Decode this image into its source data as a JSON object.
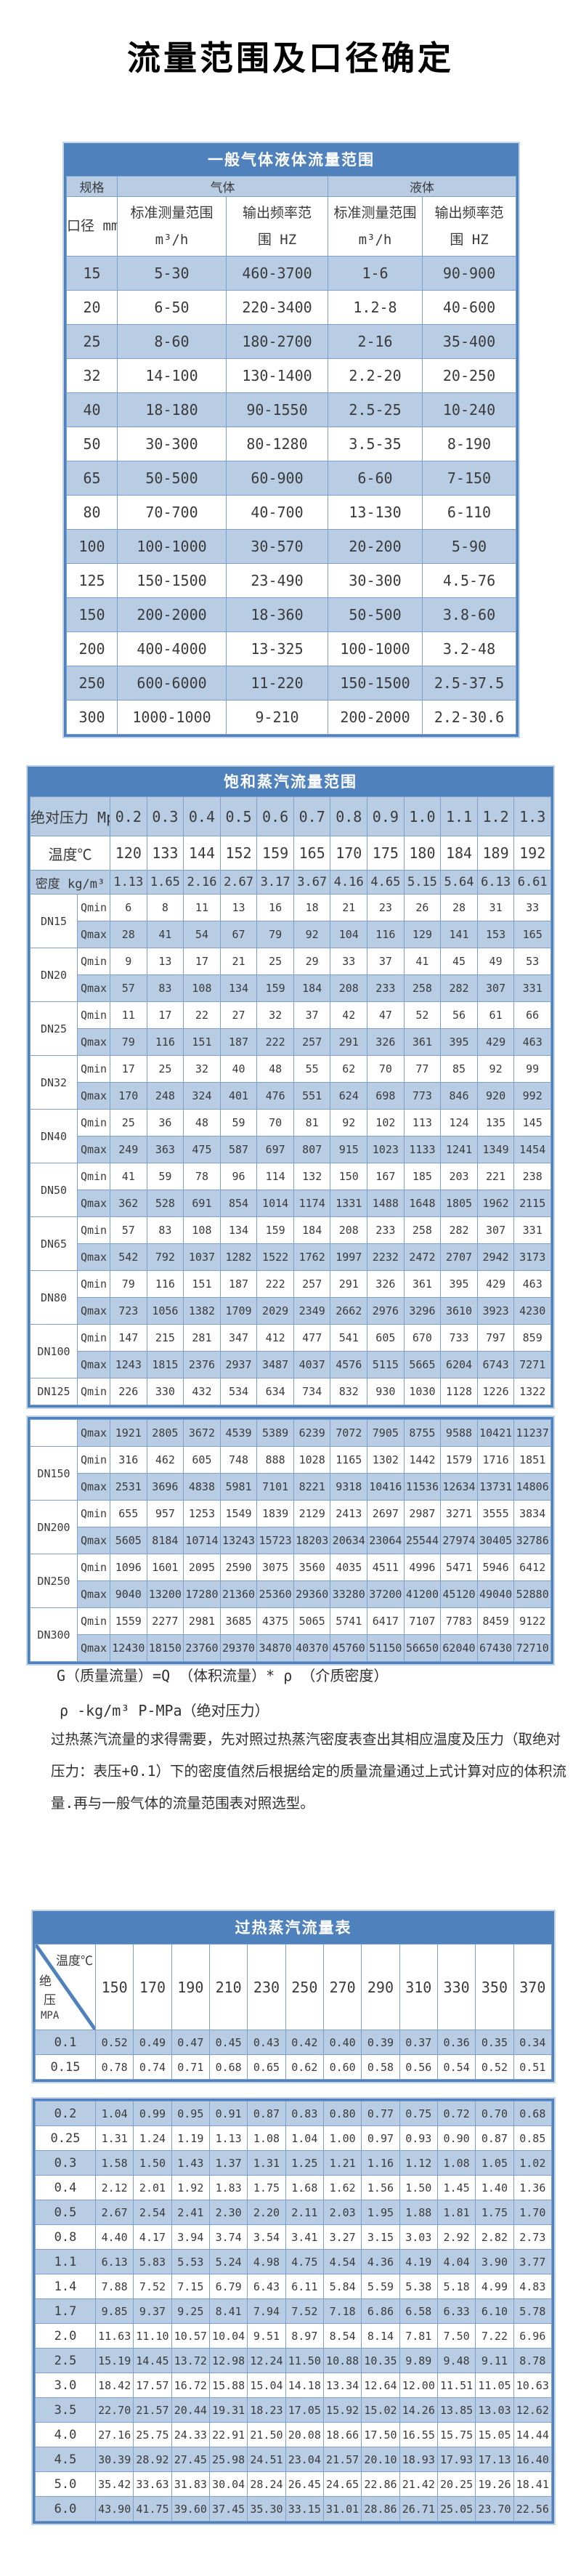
{
  "page_title": "流量范围及口径确定",
  "table1": {
    "title": "一般气体液体流量范围",
    "col_groups": [
      "规格",
      "气体",
      "液体"
    ],
    "headers": [
      {
        "line1": "口径 mm",
        "line2": ""
      },
      {
        "line1": "标准测量范围",
        "line2": "m³/h"
      },
      {
        "line1": "输出频率范",
        "line2": "围 HZ"
      },
      {
        "line1": "标准测量范围",
        "line2": "m³/h"
      },
      {
        "line1": "输出频率范",
        "line2": "围 HZ"
      }
    ],
    "rows": [
      [
        "15",
        "5-30",
        "460-3700",
        "1-6",
        "90-900"
      ],
      [
        "20",
        "6-50",
        "220-3400",
        "1.2-8",
        "40-600"
      ],
      [
        "25",
        "8-60",
        "180-2700",
        "2-16",
        "35-400"
      ],
      [
        "32",
        "14-100",
        "130-1400",
        "2.2-20",
        "20-250"
      ],
      [
        "40",
        "18-180",
        "90-1550",
        "2.5-25",
        "10-240"
      ],
      [
        "50",
        "30-300",
        "80-1280",
        "3.5-35",
        "8-190"
      ],
      [
        "65",
        "50-500",
        "60-900",
        "6-60",
        "7-150"
      ],
      [
        "80",
        "70-700",
        "40-700",
        "13-130",
        "6-110"
      ],
      [
        "100",
        "100-1000",
        "30-570",
        "20-200",
        "5-90"
      ],
      [
        "125",
        "150-1500",
        "23-490",
        "30-300",
        "4.5-76"
      ],
      [
        "150",
        "200-2000",
        "18-360",
        "50-500",
        "3.8-60"
      ],
      [
        "200",
        "400-4000",
        "13-325",
        "100-1000",
        "3.2-48"
      ],
      [
        "250",
        "600-6000",
        "11-220",
        "150-1500",
        "2.5-37.5"
      ],
      [
        "300",
        "1000-1000",
        "9-210",
        "200-2000",
        "2.2-30.6"
      ]
    ]
  },
  "table2": {
    "title": "饱和蒸汽流量范围",
    "pressure_label": "绝对压力 Mpa",
    "pressures": [
      "0.2",
      "0.3",
      "0.4",
      "0.5",
      "0.6",
      "0.7",
      "0.8",
      "0.9",
      "1.0",
      "1.1",
      "1.2",
      "1.3"
    ],
    "temperature_label": "温度℃",
    "temperatures": [
      120,
      133,
      144,
      152,
      159,
      165,
      170,
      175,
      180,
      184,
      189,
      192
    ],
    "density_label": "密度 kg/m³",
    "densities": [
      "1.13",
      "1.65",
      "2.16",
      "2.67",
      "3.17",
      "3.67",
      "4.16",
      "4.65",
      "5.15",
      "5.64",
      "6.13",
      "6.61"
    ],
    "qmin_label": "Qmin",
    "qmax_label": "Qmax",
    "block1": [
      {
        "dn": "DN15",
        "qmin": [
          6,
          8,
          11,
          13,
          16,
          18,
          21,
          23,
          26,
          28,
          31,
          33
        ],
        "qmax": [
          28,
          41,
          54,
          67,
          79,
          92,
          104,
          116,
          129,
          141,
          153,
          165
        ]
      },
      {
        "dn": "DN20",
        "qmin": [
          9,
          13,
          17,
          21,
          25,
          29,
          33,
          37,
          41,
          45,
          49,
          53
        ],
        "qmax": [
          57,
          83,
          108,
          134,
          159,
          184,
          208,
          233,
          258,
          282,
          307,
          331
        ]
      },
      {
        "dn": "DN25",
        "qmin": [
          11,
          17,
          22,
          27,
          32,
          37,
          42,
          47,
          52,
          56,
          61,
          66
        ],
        "qmax": [
          79,
          116,
          151,
          187,
          222,
          257,
          291,
          326,
          361,
          395,
          429,
          463
        ]
      },
      {
        "dn": "DN32",
        "qmin": [
          17,
          25,
          32,
          40,
          48,
          55,
          62,
          70,
          77,
          85,
          92,
          99
        ],
        "qmax": [
          170,
          248,
          324,
          401,
          476,
          551,
          624,
          698,
          773,
          846,
          920,
          992
        ]
      },
      {
        "dn": "DN40",
        "qmin": [
          25,
          36,
          48,
          59,
          70,
          81,
          92,
          102,
          113,
          124,
          135,
          145
        ],
        "qmax": [
          249,
          363,
          475,
          587,
          697,
          807,
          915,
          1023,
          1133,
          1241,
          1349,
          1454
        ]
      },
      {
        "dn": "DN50",
        "qmin": [
          41,
          59,
          78,
          96,
          114,
          132,
          150,
          167,
          185,
          203,
          221,
          238
        ],
        "qmax": [
          362,
          528,
          691,
          854,
          1014,
          1174,
          1331,
          1488,
          1648,
          1805,
          1962,
          2115
        ]
      },
      {
        "dn": "DN65",
        "qmin": [
          57,
          83,
          108,
          134,
          159,
          184,
          208,
          233,
          258,
          282,
          307,
          331
        ],
        "qmax": [
          542,
          792,
          1037,
          1282,
          1522,
          1762,
          1997,
          2232,
          2472,
          2707,
          2942,
          3173
        ]
      },
      {
        "dn": "DN80",
        "qmin": [
          79,
          116,
          151,
          187,
          222,
          257,
          291,
          326,
          361,
          395,
          429,
          463
        ],
        "qmax": [
          723,
          1056,
          1382,
          1709,
          2029,
          2349,
          2662,
          2976,
          3296,
          3610,
          3923,
          4230
        ]
      },
      {
        "dn": "DN100",
        "qmin": [
          147,
          215,
          281,
          347,
          412,
          477,
          541,
          605,
          670,
          733,
          797,
          859
        ],
        "qmax": [
          1243,
          1815,
          2376,
          2937,
          3487,
          4037,
          4576,
          5115,
          5665,
          6204,
          6743,
          7271
        ]
      },
      {
        "dn": "DN125",
        "qmin": [
          226,
          330,
          432,
          534,
          634,
          734,
          832,
          930,
          1030,
          1128,
          1226,
          1322
        ]
      }
    ],
    "block2": [
      {
        "dn": "",
        "qmax": [
          1921,
          2805,
          3672,
          4539,
          5389,
          6239,
          7072,
          7905,
          8755,
          9588,
          10421,
          11237
        ]
      },
      {
        "dn": "DN150",
        "qmin": [
          316,
          462,
          605,
          748,
          888,
          1028,
          1165,
          1302,
          1442,
          1579,
          1716,
          1851
        ],
        "qmax": [
          2531,
          3696,
          4838,
          5981,
          7101,
          8221,
          9318,
          10416,
          11536,
          12634,
          13731,
          14806
        ]
      },
      {
        "dn": "DN200",
        "qmin": [
          655,
          957,
          1253,
          1549,
          1839,
          2129,
          2413,
          2697,
          2987,
          3271,
          3555,
          3834
        ],
        "qmax": [
          5605,
          8184,
          10714,
          13243,
          15723,
          18203,
          20634,
          23064,
          25544,
          27974,
          30405,
          32786
        ]
      },
      {
        "dn": "DN250",
        "qmin": [
          1096,
          1601,
          2095,
          2590,
          3075,
          3560,
          4035,
          4511,
          4996,
          5471,
          5946,
          6412
        ],
        "qmax": [
          9040,
          13200,
          17280,
          21360,
          25360,
          29360,
          33280,
          37200,
          41200,
          45120,
          49040,
          52880
        ]
      },
      {
        "dn": "DN300",
        "qmin": [
          1559,
          2277,
          2981,
          3685,
          4375,
          5065,
          5741,
          6417,
          7107,
          7783,
          8459,
          9122
        ],
        "qmax": [
          12430,
          18150,
          23760,
          29370,
          34870,
          40370,
          45760,
          51150,
          56650,
          62040,
          67430,
          72710
        ]
      }
    ]
  },
  "notes": {
    "line1": "G（质量流量）=Q （体积流量）* ρ （介质密度）",
    "line2": "ρ -kg/m³ P-MPa（绝对压力）",
    "para": "过热蒸汽流量的求得需要，先对照过热蒸汽密度表查出其相应温度及压力（取绝对压力：表压+0.1）下的密度值然后根据给定的质量流量通过上式计算对应的体积流量.再与一般气体的流量范围表对照选型。"
  },
  "table3": {
    "title": "过热蒸汽流量表",
    "corner": {
      "top": "温度℃",
      "bottom": [
        "绝",
        "压",
        "MPA"
      ]
    },
    "temperatures": [
      150,
      170,
      190,
      210,
      230,
      250,
      270,
      290,
      310,
      330,
      350,
      370
    ],
    "block1": [
      {
        "pressure": "0.1",
        "values": [
          "0.52",
          "0.49",
          "0.47",
          "0.45",
          "0.43",
          "0.42",
          "0.40",
          "0.39",
          "0.37",
          "0.36",
          "0.35",
          "0.34"
        ]
      },
      {
        "pressure": "0.15",
        "values": [
          "0.78",
          "0.74",
          "0.71",
          "0.68",
          "0.65",
          "0.62",
          "0.60",
          "0.58",
          "0.56",
          "0.54",
          "0.52",
          "0.51"
        ]
      }
    ],
    "block2": [
      {
        "pressure": "0.2",
        "values": [
          "1.04",
          "0.99",
          "0.95",
          "0.91",
          "0.87",
          "0.83",
          "0.80",
          "0.77",
          "0.75",
          "0.72",
          "0.70",
          "0.68"
        ]
      },
      {
        "pressure": "0.25",
        "values": [
          "1.31",
          "1.24",
          "1.19",
          "1.13",
          "1.08",
          "1.04",
          "1.00",
          "0.97",
          "0.93",
          "0.90",
          "0.87",
          "0.85"
        ]
      },
      {
        "pressure": "0.3",
        "values": [
          "1.58",
          "1.50",
          "1.43",
          "1.37",
          "1.31",
          "1.25",
          "1.21",
          "1.16",
          "1.12",
          "1.08",
          "1.05",
          "1.02"
        ]
      },
      {
        "pressure": "0.4",
        "values": [
          "2.12",
          "2.01",
          "1.92",
          "1.83",
          "1.75",
          "1.68",
          "1.62",
          "1.56",
          "1.50",
          "1.45",
          "1.40",
          "1.36"
        ]
      },
      {
        "pressure": "0.5",
        "values": [
          "2.67",
          "2.54",
          "2.41",
          "2.30",
          "2.20",
          "2.11",
          "2.03",
          "1.95",
          "1.88",
          "1.81",
          "1.75",
          "1.70"
        ]
      },
      {
        "pressure": "0.8",
        "values": [
          "4.40",
          "4.17",
          "3.94",
          "3.74",
          "3.54",
          "3.41",
          "3.27",
          "3.15",
          "3.03",
          "2.92",
          "2.82",
          "2.73"
        ]
      },
      {
        "pressure": "1.1",
        "values": [
          "6.13",
          "5.83",
          "5.53",
          "5.24",
          "4.98",
          "4.75",
          "4.54",
          "4.36",
          "4.19",
          "4.04",
          "3.90",
          "3.77"
        ]
      },
      {
        "pressure": "1.4",
        "values": [
          "7.88",
          "7.52",
          "7.15",
          "6.79",
          "6.43",
          "6.11",
          "5.84",
          "5.59",
          "5.38",
          "5.18",
          "4.99",
          "4.83"
        ]
      },
      {
        "pressure": "1.7",
        "values": [
          "9.85",
          "9.37",
          "9.25",
          "8.41",
          "7.94",
          "7.52",
          "7.18",
          "6.86",
          "6.58",
          "6.33",
          "6.10",
          "5.78"
        ]
      },
      {
        "pressure": "2.0",
        "values": [
          "11.63",
          "11.10",
          "10.57",
          "10.04",
          "9.51",
          "8.97",
          "8.54",
          "8.14",
          "7.81",
          "7.50",
          "7.22",
          "6.96"
        ]
      },
      {
        "pressure": "2.5",
        "values": [
          "15.19",
          "14.45",
          "13.72",
          "12.98",
          "12.24",
          "11.50",
          "10.88",
          "10.35",
          "9.89",
          "9.48",
          "9.11",
          "8.78"
        ]
      },
      {
        "pressure": "3.0",
        "values": [
          "18.42",
          "17.57",
          "16.72",
          "15.88",
          "15.04",
          "14.18",
          "13.34",
          "12.64",
          "12.00",
          "11.51",
          "11.05",
          "10.63"
        ]
      },
      {
        "pressure": "3.5",
        "values": [
          "22.70",
          "21.57",
          "20.44",
          "19.31",
          "18.23",
          "17.05",
          "15.92",
          "15.02",
          "14.26",
          "13.85",
          "13.03",
          "12.62"
        ]
      },
      {
        "pressure": "4.0",
        "values": [
          "27.16",
          "25.75",
          "24.33",
          "22.91",
          "21.50",
          "20.08",
          "18.66",
          "17.50",
          "16.55",
          "15.75",
          "15.05",
          "14.44"
        ]
      },
      {
        "pressure": "4.5",
        "values": [
          "30.39",
          "28.92",
          "27.45",
          "25.98",
          "24.51",
          "23.04",
          "21.57",
          "20.10",
          "18.93",
          "17.93",
          "17.13",
          "16.40"
        ]
      },
      {
        "pressure": "5.0",
        "values": [
          "35.42",
          "33.63",
          "31.83",
          "30.04",
          "28.24",
          "26.45",
          "24.65",
          "22.86",
          "21.42",
          "20.25",
          "19.26",
          "18.41"
        ]
      },
      {
        "pressure": "6.0",
        "values": [
          "43.90",
          "41.75",
          "39.60",
          "37.45",
          "35.30",
          "33.15",
          "31.01",
          "28.86",
          "26.71",
          "25.05",
          "23.70",
          "22.56"
        ]
      }
    ]
  }
}
